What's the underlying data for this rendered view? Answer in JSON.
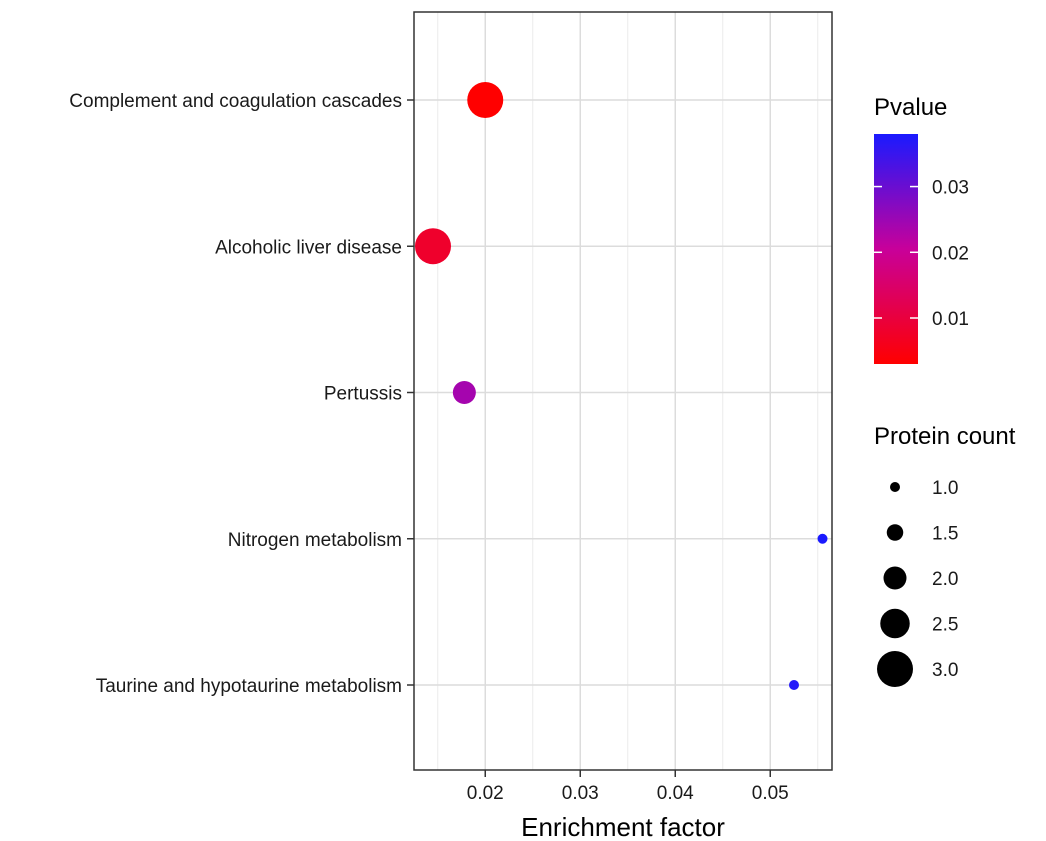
{
  "chart_data": {
    "type": "scatter",
    "xlabel": "Enrichment factor",
    "ylabel": "",
    "xlim": [
      0.0125,
      0.0565
    ],
    "xticks": [
      0.02,
      0.03,
      0.04,
      0.05
    ],
    "xtick_labels": [
      "0.02",
      "0.03",
      "0.04",
      "0.05"
    ],
    "grid": true,
    "categories": [
      "Complement and coagulation cascades",
      "Alcoholic liver disease",
      "Pertussis",
      "Nitrogen metabolism",
      "Taurine and hypotaurine metabolism"
    ],
    "points": [
      {
        "pathway": "Complement and coagulation cascades",
        "x": 0.02,
        "count": 3,
        "pvalue": 0.003
      },
      {
        "pathway": "Alcoholic liver disease",
        "x": 0.0145,
        "count": 3,
        "pvalue": 0.008
      },
      {
        "pathway": "Pertussis",
        "x": 0.0178,
        "count": 2,
        "pvalue": 0.024
      },
      {
        "pathway": "Nitrogen metabolism",
        "x": 0.0555,
        "count": 1,
        "pvalue": 0.038
      },
      {
        "pathway": "Taurine and hypotaurine metabolism",
        "x": 0.0525,
        "count": 1,
        "pvalue": 0.037
      }
    ],
    "color_legend": {
      "title": "Pvalue",
      "low_color": "#ff0000",
      "mid_color": "#c8009a",
      "high_color": "#1a1aff",
      "range": [
        0.003,
        0.038
      ],
      "ticks": [
        0.01,
        0.02,
        0.03
      ],
      "tick_labels": [
        "0.01",
        "0.02",
        "0.03"
      ]
    },
    "size_legend": {
      "title": "Protein count",
      "values": [
        1.0,
        1.5,
        2.0,
        2.5,
        3.0
      ],
      "labels": [
        "1.0",
        "1.5",
        "2.0",
        "2.5",
        "3.0"
      ]
    },
    "legend_position": "right"
  }
}
